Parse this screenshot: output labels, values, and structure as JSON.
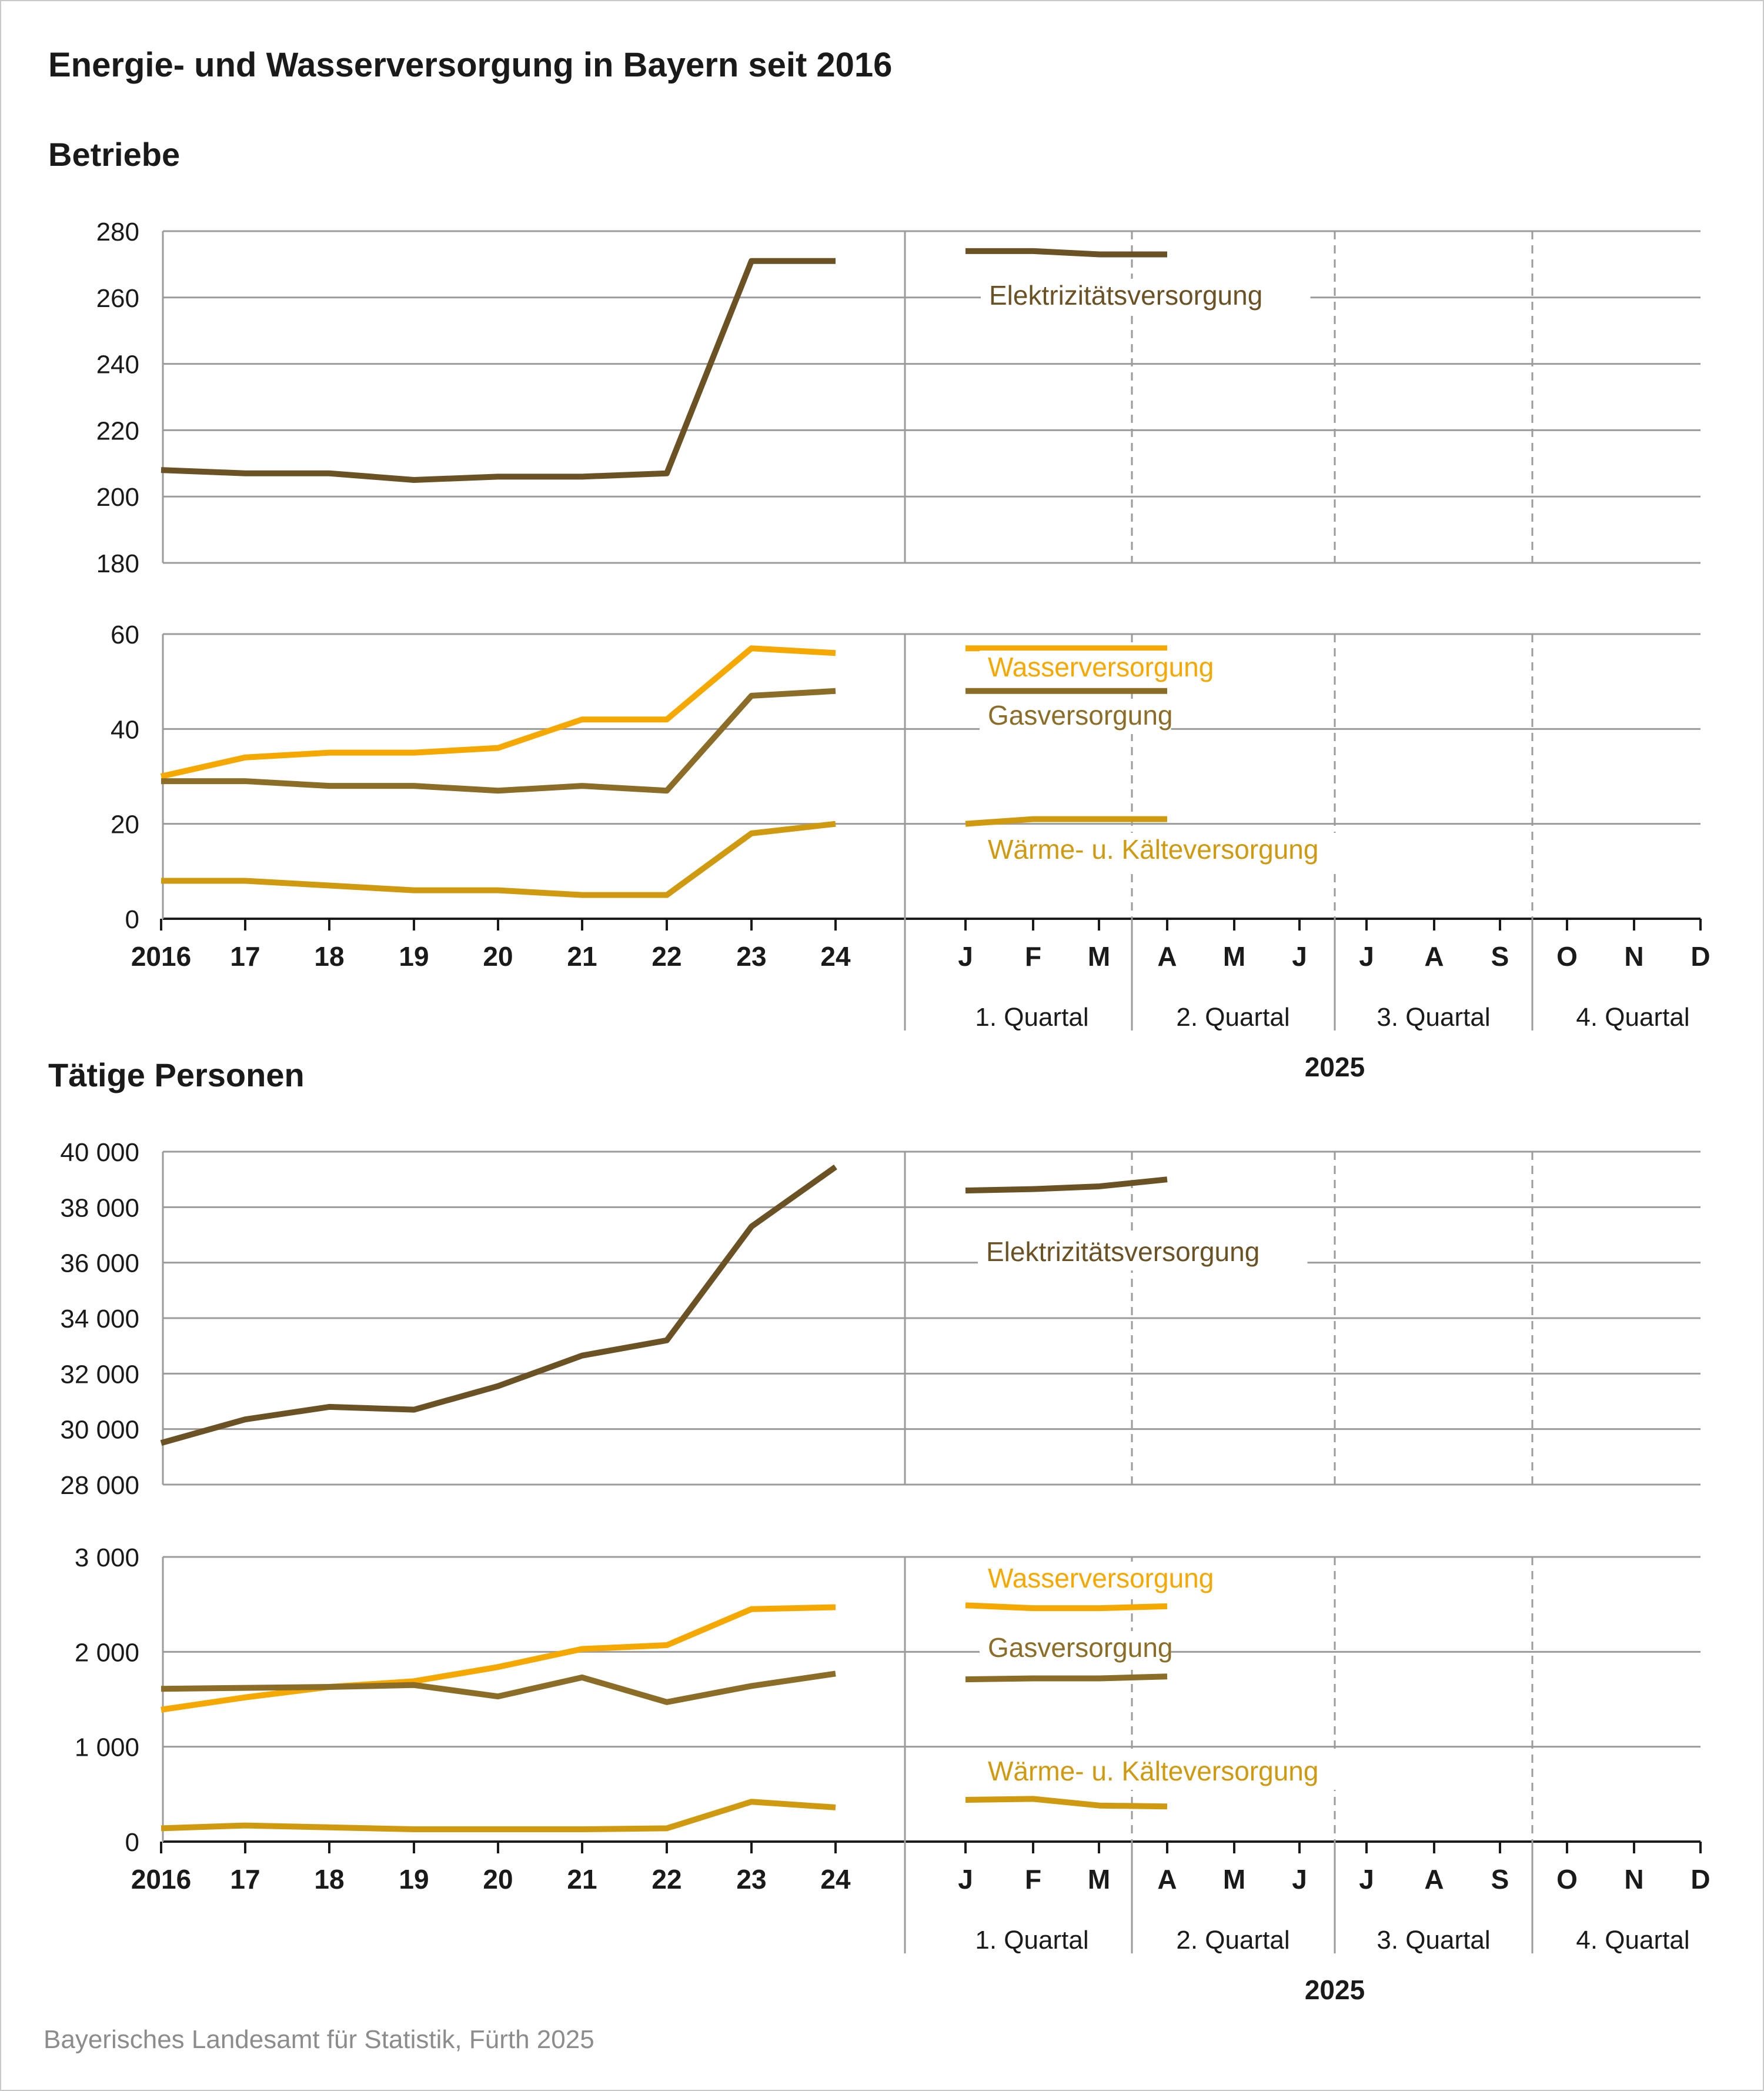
{
  "title": "Energie- und Wasserversorgung in Bayern seit 2016",
  "source": "Bayerisches Landesamt für Statistik, Fürth 2025",
  "colors": {
    "elektrizitaet": "#6b5224",
    "wasser": "#f5a800",
    "gas": "#8c6d28",
    "waerme": "#d09a10",
    "grid": "#9b9b9b",
    "axis": "#1a1a1a"
  },
  "x_axis": {
    "years": [
      "2016",
      "17",
      "18",
      "19",
      "20",
      "21",
      "22",
      "23",
      "24"
    ],
    "months": [
      "J",
      "F",
      "M",
      "A",
      "M",
      "J",
      "J",
      "A",
      "S",
      "O",
      "N",
      "D"
    ],
    "quarters": [
      "1. Quartal",
      "2. Quartal",
      "3. Quartal",
      "4. Quartal"
    ],
    "year_2025": "2025"
  },
  "chart_data": [
    {
      "type": "line",
      "title": "Betriebe",
      "panel": "upper",
      "ylim": [
        180,
        280
      ],
      "yticks": [
        "180",
        "200",
        "220",
        "240",
        "260",
        "280"
      ],
      "grid": true,
      "series": [
        {
          "name": "Elektrizitätsversorgung",
          "color_key": "elektrizitaet",
          "annual": [
            208,
            207,
            207,
            205,
            206,
            206,
            207,
            271,
            271
          ],
          "monthly_2025": [
            274,
            274,
            273,
            273
          ]
        }
      ]
    },
    {
      "type": "line",
      "title": "Betriebe",
      "panel": "lower",
      "ylim": [
        0,
        60
      ],
      "yticks": [
        "0",
        "20",
        "40",
        "60"
      ],
      "grid": true,
      "series": [
        {
          "name": "Wasserversorgung",
          "color_key": "wasser",
          "annual": [
            30,
            34,
            35,
            35,
            36,
            42,
            42,
            57,
            56
          ],
          "monthly_2025": [
            57,
            57,
            57,
            57
          ]
        },
        {
          "name": "Gasversorgung",
          "color_key": "gas",
          "annual": [
            29,
            29,
            28,
            28,
            27,
            28,
            27,
            47,
            48
          ],
          "monthly_2025": [
            48,
            48,
            48,
            48
          ]
        },
        {
          "name": "Wärme- u. Kälteversorgung",
          "color_key": "waerme",
          "annual": [
            8,
            8,
            7,
            6,
            6,
            5,
            5,
            18,
            20
          ],
          "monthly_2025": [
            20,
            21,
            21,
            21
          ]
        }
      ]
    },
    {
      "type": "line",
      "title": "Tätige Personen",
      "panel": "upper",
      "ylim": [
        28000,
        40000
      ],
      "yticks": [
        "28 000",
        "30 000",
        "32 000",
        "34 000",
        "36 000",
        "38 000",
        "40 000"
      ],
      "grid": true,
      "series": [
        {
          "name": "Elektrizitätsversorgung",
          "color_key": "elektrizitaet",
          "annual": [
            29500,
            30350,
            30800,
            30700,
            31550,
            32650,
            33200,
            37300,
            39450
          ],
          "monthly_2025": [
            38600,
            38650,
            38750,
            39000
          ]
        }
      ]
    },
    {
      "type": "line",
      "title": "Tätige Personen",
      "panel": "lower",
      "ylim": [
        0,
        3000
      ],
      "yticks": [
        "0",
        "1 000",
        "2 000",
        "3 000"
      ],
      "grid": true,
      "series": [
        {
          "name": "Wasserversorgung",
          "color_key": "wasser",
          "annual": [
            1390,
            1520,
            1630,
            1690,
            1840,
            2030,
            2070,
            2450,
            2470
          ],
          "monthly_2025": [
            2490,
            2460,
            2460,
            2480
          ]
        },
        {
          "name": "Gasversorgung",
          "color_key": "gas",
          "annual": [
            1610,
            1620,
            1630,
            1650,
            1530,
            1730,
            1470,
            1640,
            1770
          ],
          "monthly_2025": [
            1710,
            1720,
            1720,
            1740
          ]
        },
        {
          "name": "Wärme- u. Kälteversorgung",
          "color_key": "waerme",
          "annual": [
            140,
            170,
            150,
            130,
            130,
            130,
            140,
            420,
            360
          ],
          "monthly_2025": [
            440,
            450,
            380,
            370
          ]
        }
      ]
    }
  ]
}
